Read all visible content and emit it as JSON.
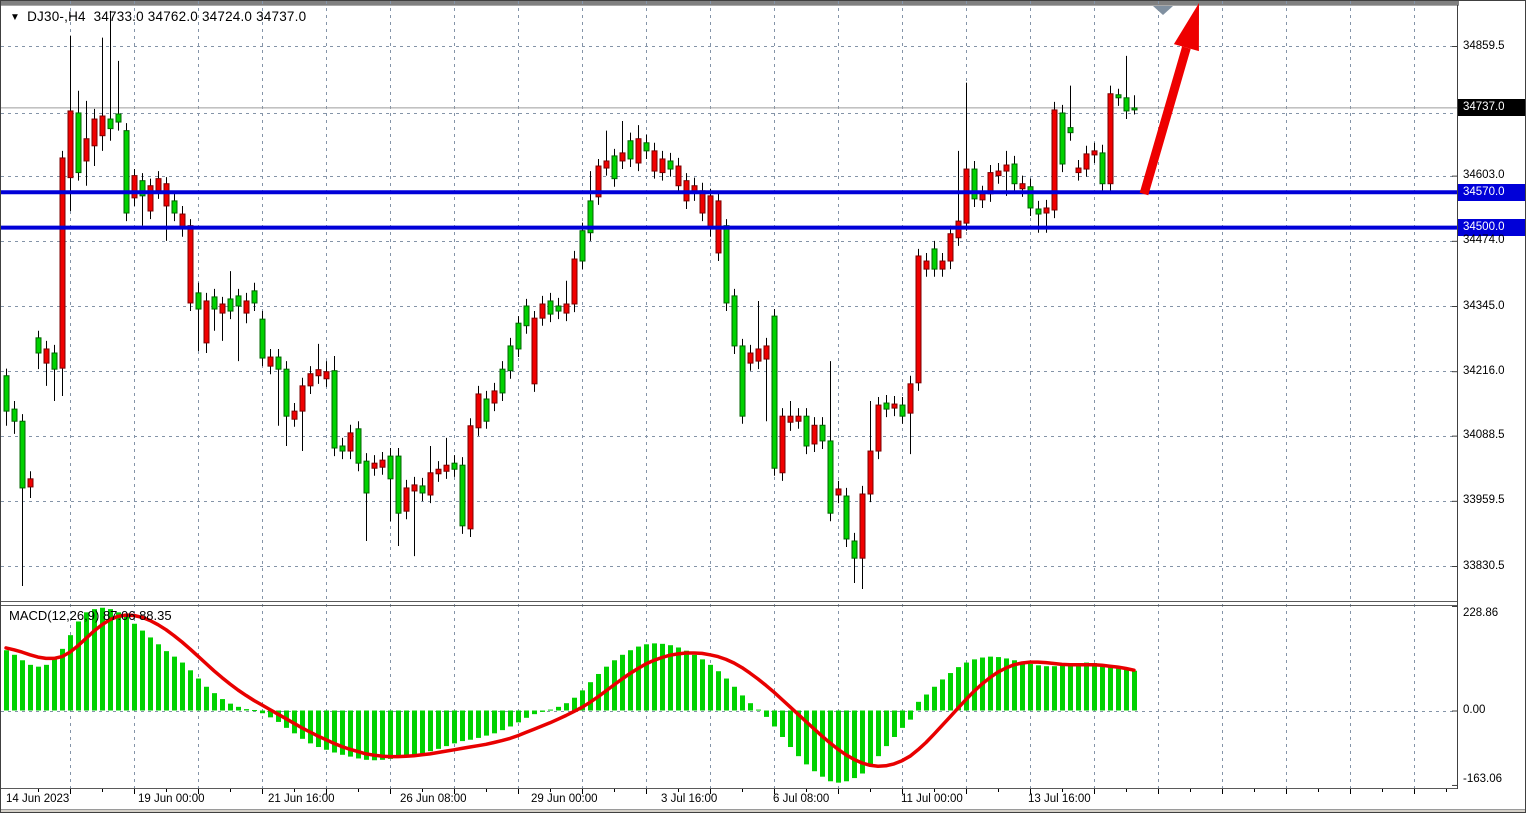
{
  "ui": {
    "header": {
      "symbol": "DJ30-,H4",
      "ohlc": "34733.0 34762.0 34724.0 34737.0"
    },
    "icons": {
      "dropdown": "▼",
      "shift_marker": "chart-shift-triangle"
    },
    "colors": {
      "candle_up": "#00d200",
      "candle_up_border": "#006400",
      "candle_down": "#f00000",
      "candle_down_border": "#7a0000",
      "wick": "#000000",
      "grid": "#8494a8",
      "bid_line": "#9c9c9c",
      "level_line": "#0000d8",
      "signal_line": "#e80000",
      "histogram": "#00d200",
      "arrow": "#ee0000",
      "bid_box_bg": "#000000",
      "level_box_bg": "#0000d8"
    }
  },
  "chart_data": [
    {
      "type": "candlestick",
      "title": "DJ30-,H4",
      "timeframe": "H4",
      "current_bar": {
        "open": 34733.0,
        "high": 34762.0,
        "low": 34724.0,
        "close": 34737.0
      },
      "ylim": [
        33770,
        34935
      ],
      "grid": true,
      "y_ticks": [
        {
          "label": "34859.5",
          "price": 34859.5
        },
        {
          "label": "34737.0",
          "price": 34737.0,
          "style": "bid"
        },
        {
          "label": "34603.0",
          "price": 34603.0
        },
        {
          "label": "34570.0",
          "price": 34570.0,
          "style": "level"
        },
        {
          "label": "34500.0",
          "price": 34500.0,
          "style": "level"
        },
        {
          "label": "34474.0",
          "price": 34474.0
        },
        {
          "label": "34345.0",
          "price": 34345.0
        },
        {
          "label": "34216.0",
          "price": 34216.0
        },
        {
          "label": "34088.5",
          "price": 34088.5
        },
        {
          "label": "33959.5",
          "price": 33959.5
        },
        {
          "label": "33830.5",
          "price": 33830.5
        }
      ],
      "levels": [
        {
          "label": "34570.0",
          "price": 34570.0
        },
        {
          "label": "34500.0",
          "price": 34500.0
        }
      ],
      "bid": {
        "label": "34737.0",
        "price": 34737.0
      },
      "annotation_arrow": {
        "anchor_price": 34570.0,
        "direction": "up"
      },
      "x_labels": [
        "14 Jun 2023",
        "19 Jun 00:00",
        "21 Jun 16:00",
        "26 Jun 08:00",
        "29 Jun 00:00",
        "3 Jul 16:00",
        "6 Jul 08:00",
        "11 Jul 00:00",
        "13 Jul 16:00"
      ],
      "candles": [
        [
          34137,
          34221,
          34108,
          34207
        ],
        [
          34117,
          34157,
          34092,
          34141
        ],
        [
          33985,
          34131,
          33791,
          34117
        ],
        [
          34003,
          34018,
          33965,
          33987
        ],
        [
          34252,
          34296,
          34220,
          34282
        ],
        [
          34260,
          34276,
          34187,
          34232
        ],
        [
          34220,
          34268,
          34157,
          34252
        ],
        [
          34638,
          34652,
          34167,
          34222
        ],
        [
          34731,
          34880,
          34533,
          34599
        ],
        [
          34609,
          34771,
          34593,
          34727
        ],
        [
          34676,
          34751,
          34583,
          34632
        ],
        [
          34715,
          34735,
          34622,
          34662
        ],
        [
          34721,
          34876,
          34652,
          34682
        ],
        [
          34696,
          34929,
          34672,
          34715
        ],
        [
          34709,
          34830,
          34692,
          34725
        ],
        [
          34529,
          34707,
          34513,
          34692
        ],
        [
          34603,
          34616,
          34543,
          34559
        ],
        [
          34563,
          34608,
          34504,
          34593
        ],
        [
          34583,
          34597,
          34517,
          34533
        ],
        [
          34597,
          34612,
          34557,
          34573
        ],
        [
          34587,
          34600,
          34474,
          34543
        ],
        [
          34529,
          34567,
          34513,
          34553
        ],
        [
          34527,
          34543,
          34482,
          34498
        ],
        [
          34504,
          34517,
          34335,
          34351
        ],
        [
          34339,
          34391,
          34256,
          34371
        ],
        [
          34355,
          34371,
          34252,
          34272
        ],
        [
          34339,
          34379,
          34296,
          34363
        ],
        [
          34349,
          34363,
          34276,
          34331
        ],
        [
          34335,
          34414,
          34319,
          34359
        ],
        [
          34345,
          34379,
          34236,
          34365
        ],
        [
          34355,
          34371,
          34311,
          34331
        ],
        [
          34351,
          34391,
          34335,
          34375
        ],
        [
          34242,
          34335,
          34226,
          34319
        ],
        [
          34244,
          34260,
          34210,
          34226
        ],
        [
          34220,
          34260,
          34108,
          34244
        ],
        [
          34127,
          34236,
          34068,
          34220
        ],
        [
          34137,
          34153,
          34106,
          34121
        ],
        [
          34187,
          34203,
          34058,
          34137
        ],
        [
          34211,
          34226,
          34171,
          34187
        ],
        [
          34219,
          34270,
          34191,
          34207
        ],
        [
          34215,
          34236,
          34185,
          34201
        ],
        [
          34064,
          34246,
          34048,
          34217
        ],
        [
          34058,
          34084,
          34042,
          34068
        ],
        [
          34094,
          34110,
          34042,
          34058
        ],
        [
          34034,
          34117,
          34018,
          34102
        ],
        [
          33975,
          34054,
          33880,
          34038
        ],
        [
          34034,
          34050,
          34009,
          34024
        ],
        [
          34040,
          34056,
          34011,
          34026
        ],
        [
          34003,
          34064,
          33919,
          34048
        ],
        [
          33935,
          34064,
          33870,
          34048
        ],
        [
          33985,
          34001,
          33923,
          33939
        ],
        [
          33991,
          34007,
          33850,
          33979
        ],
        [
          33975,
          34005,
          33959,
          33989
        ],
        [
          34015,
          34068,
          33955,
          33971
        ],
        [
          34022,
          34038,
          33997,
          34013
        ],
        [
          34030,
          34084,
          34003,
          34018
        ],
        [
          34022,
          34050,
          34007,
          34034
        ],
        [
          33910,
          34046,
          33894,
          34030
        ],
        [
          34108,
          34123,
          33888,
          33904
        ],
        [
          34171,
          34187,
          34088,
          34104
        ],
        [
          34117,
          34177,
          34102,
          34161
        ],
        [
          34177,
          34193,
          34137,
          34153
        ],
        [
          34173,
          34236,
          34157,
          34220
        ],
        [
          34217,
          34282,
          34201,
          34266
        ],
        [
          34260,
          34325,
          34244,
          34311
        ],
        [
          34306,
          34359,
          34290,
          34345
        ],
        [
          34321,
          34335,
          34175,
          34191
        ],
        [
          34349,
          34365,
          34306,
          34321
        ],
        [
          34329,
          34371,
          34313,
          34355
        ],
        [
          34335,
          34361,
          34319,
          34345
        ],
        [
          34349,
          34395,
          34315,
          34331
        ],
        [
          34438,
          34454,
          34333,
          34349
        ],
        [
          34434,
          34510,
          34418,
          34494
        ],
        [
          34490,
          34612,
          34474,
          34553
        ],
        [
          34622,
          34636,
          34545,
          34561
        ],
        [
          34632,
          34692,
          34603,
          34618
        ],
        [
          34597,
          34656,
          34581,
          34642
        ],
        [
          34648,
          34711,
          34616,
          34632
        ],
        [
          34636,
          34688,
          34620,
          34672
        ],
        [
          34676,
          34703,
          34612,
          34628
        ],
        [
          34652,
          34684,
          34636,
          34668
        ],
        [
          34652,
          34668,
          34597,
          34612
        ],
        [
          34636,
          34652,
          34593,
          34609
        ],
        [
          34616,
          34648,
          34601,
          34632
        ],
        [
          34622,
          34638,
          34567,
          34583
        ],
        [
          34593,
          34608,
          34537,
          34553
        ],
        [
          34583,
          34599,
          34553,
          34569
        ],
        [
          34573,
          34589,
          34513,
          34529
        ],
        [
          34563,
          34577,
          34482,
          34498
        ],
        [
          34553,
          34569,
          34434,
          34450
        ],
        [
          34351,
          34517,
          34335,
          34504
        ],
        [
          34266,
          34379,
          34250,
          34365
        ],
        [
          34127,
          34280,
          34112,
          34266
        ],
        [
          34252,
          34268,
          34217,
          34232
        ],
        [
          34260,
          34355,
          34220,
          34236
        ],
        [
          34266,
          34282,
          34117,
          34240
        ],
        [
          34024,
          34339,
          34009,
          34325
        ],
        [
          34127,
          34143,
          33999,
          34015
        ],
        [
          34127,
          34157,
          34098,
          34115
        ],
        [
          34127,
          34143,
          34102,
          34117
        ],
        [
          34068,
          34143,
          34052,
          34127
        ],
        [
          34109,
          34125,
          34056,
          34072
        ],
        [
          34078,
          34125,
          34062,
          34109
        ],
        [
          33935,
          34236,
          33919,
          34078
        ],
        [
          33983,
          33999,
          33955,
          33971
        ],
        [
          33884,
          33985,
          33868,
          33969
        ],
        [
          33846,
          33896,
          33797,
          33880
        ],
        [
          33973,
          33989,
          33785,
          33846
        ],
        [
          34058,
          34157,
          33957,
          33973
        ],
        [
          34149,
          34165,
          34042,
          34058
        ],
        [
          34141,
          34169,
          34125,
          34153
        ],
        [
          34151,
          34167,
          34127,
          34143
        ],
        [
          34127,
          34165,
          34112,
          34149
        ],
        [
          34191,
          34207,
          34052,
          34133
        ],
        [
          34444,
          34458,
          34177,
          34193
        ],
        [
          34434,
          34450,
          34403,
          34418
        ],
        [
          34418,
          34474,
          34403,
          34458
        ],
        [
          34434,
          34450,
          34403,
          34418
        ],
        [
          34488,
          34504,
          34418,
          34434
        ],
        [
          34513,
          34652,
          34464,
          34480
        ],
        [
          34616,
          34787,
          34494,
          34509
        ],
        [
          34557,
          34632,
          34541,
          34616
        ],
        [
          34567,
          34583,
          34539,
          34555
        ],
        [
          34609,
          34624,
          34551,
          34567
        ],
        [
          34612,
          34628,
          34587,
          34603
        ],
        [
          34624,
          34652,
          34563,
          34612
        ],
        [
          34587,
          34642,
          34571,
          34626
        ],
        [
          34587,
          34603,
          34561,
          34577
        ],
        [
          34539,
          34597,
          34523,
          34581
        ],
        [
          34527,
          34553,
          34490,
          34537
        ],
        [
          34539,
          34555,
          34490,
          34529
        ],
        [
          34733,
          34749,
          34519,
          34535
        ],
        [
          34626,
          34743,
          34610,
          34727
        ],
        [
          34688,
          34781,
          34672,
          34698
        ],
        [
          34618,
          34634,
          34593,
          34609
        ],
        [
          34646,
          34662,
          34601,
          34616
        ],
        [
          34652,
          34668,
          34628,
          34644
        ],
        [
          34587,
          34664,
          34571,
          34648
        ],
        [
          34765,
          34781,
          34571,
          34587
        ],
        [
          34757,
          34775,
          34741,
          34763
        ],
        [
          34731,
          34840,
          34715,
          34757
        ],
        [
          34733,
          34762,
          34724,
          34737
        ]
      ]
    },
    {
      "type": "macd",
      "label": "MACD(12,26,9)",
      "values_label": "87.06 88.35",
      "params": [
        12,
        26,
        9
      ],
      "current": {
        "macd": 87.06,
        "signal": 88.35
      },
      "y_ticks": [
        {
          "label": "228.86",
          "value": 228.86
        },
        {
          "label": "0.00",
          "value": 0
        },
        {
          "label": "-163.06",
          "value": -163.06
        }
      ],
      "histogram": [
        132,
        122,
        110,
        100,
        96,
        100,
        112,
        135,
        165,
        195,
        215,
        222,
        225,
        222,
        215,
        205,
        190,
        175,
        160,
        145,
        130,
        118,
        105,
        88,
        70,
        52,
        38,
        25,
        15,
        8,
        3,
        1,
        -6,
        -15,
        -25,
        -38,
        -50,
        -62,
        -72,
        -80,
        -86,
        -92,
        -97,
        -101,
        -105,
        -108,
        -109,
        -108,
        -106,
        -104,
        -101,
        -98,
        -94,
        -89,
        -84,
        -78,
        -72,
        -67,
        -64,
        -60,
        -55,
        -50,
        -43,
        -35,
        -26,
        -16,
        -8,
        -3,
        2,
        8,
        16,
        28,
        44,
        62,
        80,
        96,
        110,
        122,
        132,
        140,
        145,
        147,
        146,
        143,
        138,
        131,
        122,
        112,
        100,
        86,
        70,
        52,
        33,
        16,
        2,
        -14,
        -35,
        -58,
        -80,
        -100,
        -118,
        -133,
        -145,
        -155,
        -158,
        -155,
        -148,
        -138,
        -122,
        -100,
        -78,
        -58,
        -38,
        -20,
        19,
        35,
        52,
        68,
        82,
        95,
        105,
        112,
        116,
        118,
        117,
        114,
        110,
        106,
        102,
        99,
        97,
        97,
        99,
        102,
        104,
        105,
        104,
        101,
        97,
        93,
        90,
        87.06
      ],
      "signal": [
        137,
        133,
        128,
        122,
        117,
        114,
        114,
        118,
        128,
        142,
        158,
        174,
        188,
        199,
        206,
        209,
        208,
        204,
        197,
        188,
        177,
        164,
        150,
        135,
        119,
        103,
        87,
        72,
        58,
        45,
        33,
        22,
        12,
        2,
        -8,
        -18,
        -28,
        -38,
        -47,
        -56,
        -64,
        -72,
        -79,
        -85,
        -90,
        -95,
        -98,
        -100,
        -101,
        -101,
        -100,
        -99,
        -97,
        -95,
        -92,
        -89,
        -86,
        -83,
        -80,
        -77,
        -74,
        -70,
        -66,
        -61,
        -55,
        -48,
        -41,
        -34,
        -27,
        -19,
        -11,
        -2,
        7,
        18,
        30,
        43,
        56,
        69,
        81,
        92,
        102,
        110,
        116,
        121,
        124,
        126,
        126,
        125,
        122,
        118,
        112,
        104,
        94,
        82,
        69,
        55,
        40,
        24,
        8,
        -8,
        -24,
        -40,
        -56,
        -71,
        -85,
        -97,
        -107,
        -115,
        -120,
        -122,
        -121,
        -117,
        -110,
        -100,
        -86,
        -70,
        -52,
        -33,
        -14,
        5,
        24,
        42,
        58,
        72,
        84,
        93,
        100,
        104,
        106,
        106,
        105,
        103,
        101,
        100,
        100,
        100,
        100,
        99,
        97,
        95,
        92,
        88.35
      ]
    }
  ]
}
